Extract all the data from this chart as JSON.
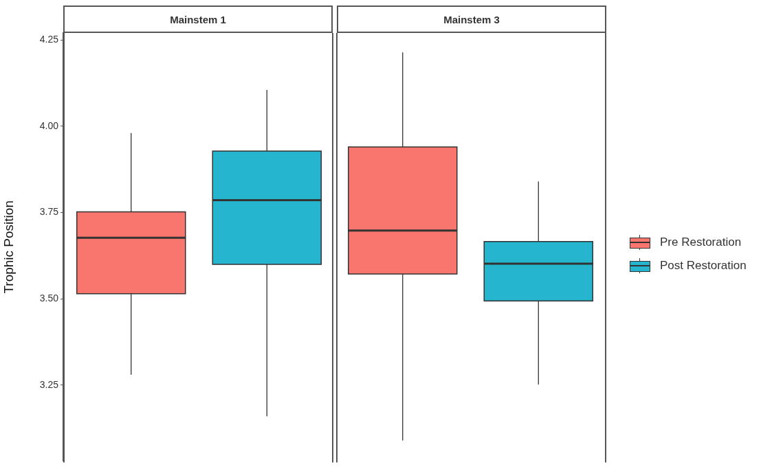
{
  "chart_data": {
    "type": "box",
    "ylabel": "Trophic Position",
    "categories": [
      "Mainstem 1",
      "Mainstem 3"
    ],
    "ylim": [
      3.03,
      4.27
    ],
    "yticks": [
      {
        "value": 3.25,
        "label": "3.25"
      },
      {
        "value": 3.5,
        "label": "3.50"
      },
      {
        "value": 3.75,
        "label": "3.75"
      },
      {
        "value": 4,
        "label": "4.00"
      },
      {
        "value": 4.25,
        "label": "4.25"
      }
    ],
    "legend": "right",
    "series": [
      {
        "name": "Pre Restoration",
        "color": "#f8766d",
        "boxes": [
          {
            "low": 3.28,
            "q1": 3.515,
            "median": 3.677,
            "q3": 3.752,
            "high": 3.98
          },
          {
            "low": 3.09,
            "q1": 3.572,
            "median": 3.698,
            "q3": 3.94,
            "high": 4.214
          }
        ]
      },
      {
        "name": "Post Restoration",
        "color": "#26b5cf",
        "boxes": [
          {
            "low": 3.16,
            "q1": 3.6,
            "median": 3.786,
            "q3": 3.928,
            "high": 4.105
          },
          {
            "low": 3.252,
            "q1": 3.494,
            "median": 3.602,
            "q3": 3.666,
            "high": 3.84
          }
        ]
      }
    ]
  }
}
